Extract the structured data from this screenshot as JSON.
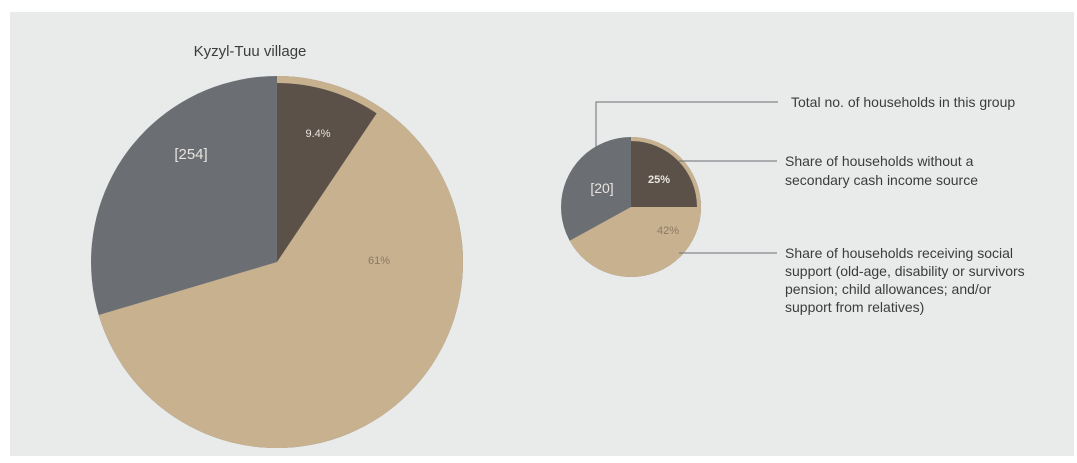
{
  "colors": {
    "background": "#e9eaea",
    "gray_sector": "#6b6f74",
    "dark_sector": "#5b5149",
    "tan_sector": "#c8b18f",
    "leader_line": "#6b6f74",
    "text_dark": "#3c3c3c",
    "text_light": "#e8e4de",
    "text_tan": "#8a7a64"
  },
  "chart_data": [
    {
      "type": "pie",
      "title": "Kyzyl-Tuu village",
      "total_label": "[254]",
      "slices": [
        {
          "name": "dark",
          "label": "9.4%",
          "value": 9.4
        },
        {
          "name": "tan",
          "label": "61%",
          "value": 61
        }
      ]
    },
    {
      "type": "pie",
      "title": "",
      "total_label": "[20]",
      "slices": [
        {
          "name": "dark",
          "label": "25%",
          "value": 25
        },
        {
          "name": "tan",
          "label": "42%",
          "value": 42
        }
      ]
    }
  ],
  "legend": {
    "total": "Total no. of households in this group",
    "no_secondary_lines": [
      "Share of households without a",
      "secondary cash income source"
    ],
    "social_support_lines": [
      "Share of households receiving social",
      "support (old-age, disability or survivors",
      "pension; child allowances; and/or",
      "support from relatives)"
    ]
  }
}
